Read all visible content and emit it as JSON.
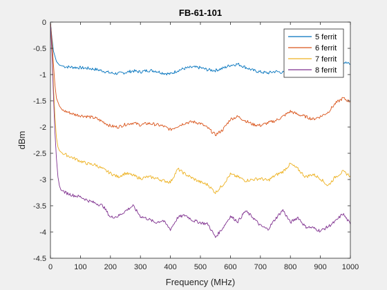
{
  "chart_data": {
    "type": "line",
    "title": "FB-61-101",
    "xlabel": "Frequency (MHz)",
    "ylabel": "dBm",
    "xlim": [
      0,
      1000
    ],
    "ylim": [
      -4.5,
      0
    ],
    "xticks": [
      0,
      100,
      200,
      300,
      400,
      500,
      600,
      700,
      800,
      900,
      1000
    ],
    "yticks": [
      0,
      -0.5,
      -1,
      -1.5,
      -2,
      -2.5,
      -3,
      -3.5,
      -4,
      -4.5
    ],
    "xtick_labels": [
      "0",
      "100",
      "200",
      "300",
      "400",
      "500",
      "600",
      "700",
      "800",
      "900",
      "1000"
    ],
    "ytick_labels": [
      "0",
      "-0.5",
      "-1",
      "-1.5",
      "-2",
      "-2.5",
      "-3",
      "-3.5",
      "-4",
      "-4.5"
    ],
    "grid": false,
    "legend_position": "top-right",
    "series": [
      {
        "name": "5 ferrit",
        "color": "#0072BD",
        "x": [
          0,
          5,
          10,
          20,
          30,
          50,
          75,
          100,
          125,
          150,
          175,
          200,
          225,
          250,
          275,
          300,
          325,
          350,
          375,
          400,
          425,
          450,
          475,
          500,
          525,
          550,
          575,
          600,
          625,
          650,
          675,
          700,
          725,
          750,
          775,
          800,
          825,
          850,
          875,
          900,
          925,
          950,
          975,
          1000
        ],
        "y": [
          0,
          -0.3,
          -0.55,
          -0.75,
          -0.82,
          -0.85,
          -0.86,
          -0.87,
          -0.88,
          -0.9,
          -0.93,
          -0.97,
          -0.98,
          -0.96,
          -0.93,
          -0.95,
          -0.92,
          -0.93,
          -0.97,
          -0.99,
          -0.92,
          -0.88,
          -0.86,
          -0.87,
          -0.91,
          -0.92,
          -0.88,
          -0.82,
          -0.8,
          -0.86,
          -0.92,
          -0.95,
          -0.97,
          -0.94,
          -0.96,
          -0.99,
          -0.98,
          -0.9,
          -0.87,
          -0.95,
          -0.85,
          -0.78,
          -0.76,
          -0.8
        ]
      },
      {
        "name": "6 ferrit",
        "color": "#D95319",
        "x": [
          0,
          5,
          10,
          15,
          20,
          30,
          40,
          60,
          80,
          100,
          125,
          150,
          175,
          200,
          225,
          250,
          275,
          300,
          325,
          350,
          375,
          400,
          425,
          450,
          475,
          500,
          525,
          550,
          575,
          600,
          625,
          650,
          675,
          700,
          725,
          750,
          775,
          800,
          825,
          850,
          875,
          900,
          925,
          950,
          975,
          1000
        ],
        "y": [
          0,
          -0.35,
          -0.8,
          -1.2,
          -1.45,
          -1.6,
          -1.68,
          -1.72,
          -1.76,
          -1.78,
          -1.8,
          -1.83,
          -1.9,
          -1.98,
          -2.0,
          -1.95,
          -1.92,
          -1.96,
          -1.93,
          -1.95,
          -1.98,
          -2.05,
          -1.98,
          -1.92,
          -1.9,
          -1.93,
          -2.02,
          -2.15,
          -2.05,
          -1.85,
          -1.8,
          -1.88,
          -1.95,
          -1.97,
          -1.92,
          -1.88,
          -1.8,
          -1.7,
          -1.76,
          -1.8,
          -1.85,
          -1.8,
          -1.72,
          -1.55,
          -1.45,
          -1.52
        ]
      },
      {
        "name": "7 ferrit",
        "color": "#EDB120",
        "x": [
          0,
          5,
          10,
          15,
          20,
          25,
          30,
          40,
          60,
          80,
          100,
          125,
          150,
          175,
          200,
          225,
          250,
          275,
          300,
          325,
          350,
          375,
          400,
          425,
          450,
          475,
          500,
          525,
          550,
          575,
          600,
          625,
          650,
          675,
          700,
          725,
          750,
          775,
          800,
          825,
          850,
          875,
          900,
          925,
          950,
          975,
          1000
        ],
        "y": [
          0,
          -0.5,
          -1.2,
          -1.8,
          -2.2,
          -2.38,
          -2.45,
          -2.5,
          -2.55,
          -2.6,
          -2.65,
          -2.7,
          -2.72,
          -2.8,
          -2.88,
          -2.95,
          -2.88,
          -2.92,
          -2.98,
          -2.95,
          -2.97,
          -3.02,
          -3.05,
          -2.8,
          -2.9,
          -2.98,
          -3.05,
          -3.1,
          -3.25,
          -3.1,
          -2.9,
          -2.95,
          -3.02,
          -3.0,
          -2.98,
          -3.02,
          -2.92,
          -2.85,
          -2.7,
          -2.8,
          -2.95,
          -2.9,
          -2.98,
          -3.12,
          -2.95,
          -2.85,
          -2.93
        ]
      },
      {
        "name": "8 ferrit",
        "color": "#7E2F8E",
        "x": [
          0,
          5,
          10,
          15,
          20,
          25,
          30,
          35,
          50,
          75,
          100,
          125,
          150,
          175,
          200,
          225,
          250,
          275,
          300,
          325,
          350,
          375,
          400,
          425,
          450,
          475,
          500,
          525,
          550,
          575,
          600,
          625,
          650,
          675,
          700,
          725,
          750,
          775,
          800,
          825,
          850,
          875,
          900,
          925,
          950,
          975,
          1000
        ],
        "y": [
          0,
          -0.6,
          -1.4,
          -2.1,
          -2.6,
          -2.95,
          -3.12,
          -3.2,
          -3.25,
          -3.3,
          -3.33,
          -3.4,
          -3.45,
          -3.5,
          -3.72,
          -3.7,
          -3.6,
          -3.5,
          -3.7,
          -3.75,
          -3.82,
          -3.78,
          -3.95,
          -3.72,
          -3.68,
          -3.78,
          -3.82,
          -3.85,
          -4.1,
          -3.92,
          -3.7,
          -3.8,
          -3.6,
          -3.72,
          -3.88,
          -3.95,
          -3.75,
          -3.58,
          -3.82,
          -3.72,
          -3.9,
          -3.92,
          -3.98,
          -3.9,
          -3.8,
          -3.65,
          -3.85
        ]
      }
    ]
  }
}
